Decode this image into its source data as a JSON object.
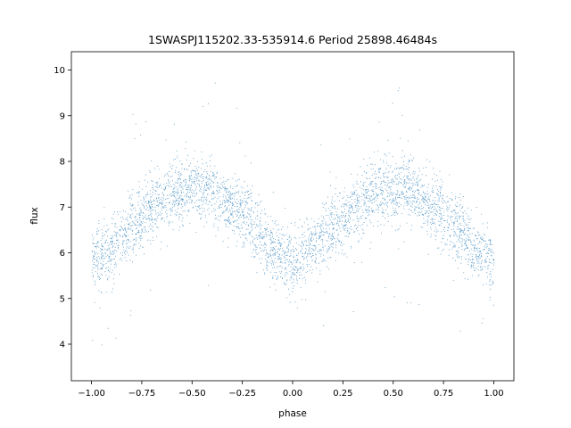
{
  "chart_data": {
    "type": "scatter",
    "title": "1SWASPJ115202.33-535914.6 Period 25898.46484s",
    "xlabel": "phase",
    "ylabel": "flux",
    "xlim": [
      -1.1,
      1.1
    ],
    "ylim": [
      3.2,
      10.4
    ],
    "xticks": [
      -1.0,
      -0.75,
      -0.5,
      -0.25,
      0.0,
      0.25,
      0.5,
      0.75,
      1.0
    ],
    "xtick_labels": [
      "−1.00",
      "−0.75",
      "−0.50",
      "−0.25",
      "0.00",
      "0.25",
      "0.50",
      "0.75",
      "1.00"
    ],
    "yticks": [
      4,
      5,
      6,
      7,
      8,
      9,
      10
    ],
    "ytick_labels": [
      "4",
      "5",
      "6",
      "7",
      "8",
      "9",
      "10"
    ],
    "grid": false,
    "color": "#1f77b4",
    "series": [
      {
        "phase": [
          -1.0,
          -0.9,
          -0.8,
          -0.7,
          -0.6,
          -0.5,
          -0.4,
          -0.3,
          -0.2,
          -0.1,
          0.0,
          0.1,
          0.2,
          0.3,
          0.4,
          0.5,
          0.6,
          0.7,
          0.8,
          0.9,
          1.0
        ],
        "flux": [
          5.8,
          6.1,
          6.6,
          7.0,
          7.3,
          7.4,
          7.3,
          7.0,
          6.6,
          6.1,
          5.8,
          6.1,
          6.6,
          7.0,
          7.3,
          7.4,
          7.3,
          7.0,
          6.6,
          6.1,
          5.8
        ],
        "spread": 0.35
      }
    ]
  }
}
